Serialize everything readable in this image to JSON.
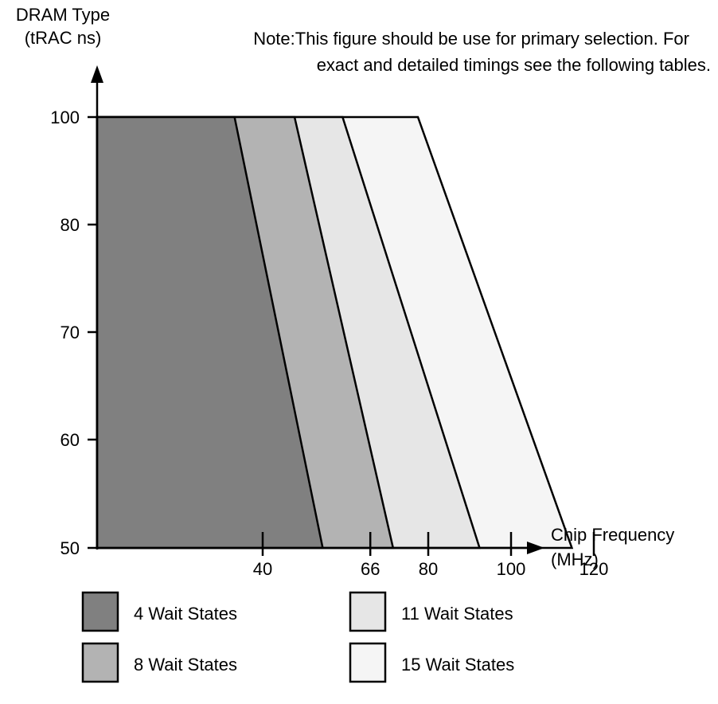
{
  "chart_data": {
    "type": "area",
    "title": "",
    "note": [
      "Note:This figure should be use for primary selection. For",
      "exact and detailed timings see the following tables."
    ],
    "ylabel": [
      "DRAM Type",
      "(tRAC ns)"
    ],
    "xlabel": [
      "Chip Frequency",
      "(MHz)"
    ],
    "y_ticks": [
      100,
      80,
      70,
      60,
      50
    ],
    "x_ticks": [
      40,
      66,
      80,
      100,
      120
    ],
    "regions": [
      {
        "name": "4 Wait States",
        "color": "#808080",
        "top_right_x": 33.2,
        "bottom_right_x": 54.5
      },
      {
        "name": "8 Wait States",
        "color": "#b3b3b3",
        "top_right_x": 47.7,
        "bottom_right_x": 71.5
      },
      {
        "name": "11 Wait States",
        "color": "#e6e6e6",
        "top_right_x": 59.3,
        "bottom_right_x": 92.4
      },
      {
        "name": "15 Wait States",
        "color": "#f5f5f5",
        "top_right_x": 77.5,
        "bottom_right_x": 114.7
      }
    ],
    "legend": {
      "placement": "bottom",
      "columns": 2
    },
    "grid": false
  }
}
